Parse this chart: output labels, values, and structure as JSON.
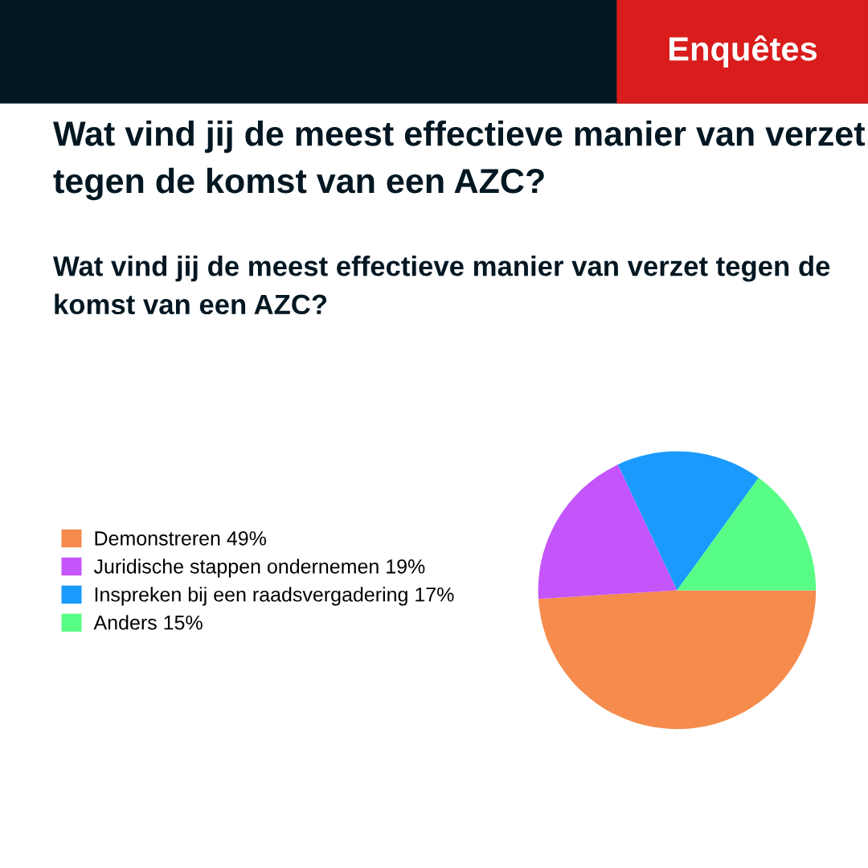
{
  "chart_data": {
    "type": "pie",
    "title": "Wat vind jij de meest effectieve manier van verzet tegen de komst van een AZC?",
    "subtitle": "Wat vind jij de meest effectieve manier van verzet tegen de komst van een AZC?",
    "categories": [
      "Demonstreren",
      "Juridische stappen ondernemen",
      "Inspreken bij een raadsvergadering",
      "Anders"
    ],
    "values": [
      49,
      19,
      17,
      15
    ],
    "value_labels": [
      "49%",
      "19%",
      "17%",
      "15%"
    ],
    "colors": [
      "#f58b4c",
      "#c455fb",
      "#1a9afc",
      "#58fd85"
    ],
    "legend": "left",
    "annotations": [
      "Enquêtes"
    ]
  }
}
